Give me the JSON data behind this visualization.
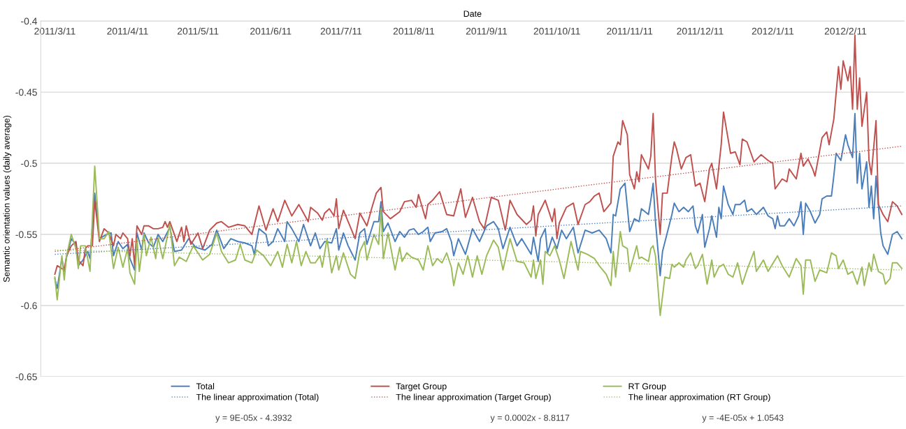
{
  "chart_data": {
    "type": "line",
    "xlabel": "Date",
    "ylabel": "Semantic orientation values (daily average)",
    "xlim": [
      "2011-03-05",
      "2012-03-07"
    ],
    "xticks": [
      {
        "value": "2011-03-11",
        "label": "2011/3/11"
      },
      {
        "value": "2011-04-11",
        "label": "2011/4/11"
      },
      {
        "value": "2011-05-11",
        "label": "2011/5/11"
      },
      {
        "value": "2011-06-11",
        "label": "2011/6/11"
      },
      {
        "value": "2011-07-11",
        "label": "2011/7/11"
      },
      {
        "value": "2011-08-11",
        "label": "2011/8/11"
      },
      {
        "value": "2011-09-11",
        "label": "2011/9/11"
      },
      {
        "value": "2011-10-11",
        "label": "2011/10/11"
      },
      {
        "value": "2011-11-11",
        "label": "2011/11/11"
      },
      {
        "value": "2011-12-11",
        "label": "2011/12/11"
      },
      {
        "value": "2012-01-11",
        "label": "2012/1/11"
      },
      {
        "value": "2012-02-11",
        "label": "2012/2/11"
      }
    ],
    "ylim": [
      -0.65,
      -0.4
    ],
    "yticks": [
      -0.65,
      -0.6,
      -0.55,
      -0.5,
      -0.45,
      -0.4
    ],
    "grid": "y",
    "legend": "bottom",
    "marker": "none",
    "annotations": [
      "y = 9E-05x - 4.3932",
      "y = 0.0002x - 8.8117",
      "y = -4E-05x + 1.0543"
    ],
    "series": [
      {
        "name": "Total",
        "color": "#4a7ebb",
        "line_style": "solid",
        "x": [
          "2011-03-11",
          "2011-03-12",
          "2011-03-14",
          "2011-03-15",
          "2011-03-16",
          "2011-03-18",
          "2011-03-20",
          "2011-03-21",
          "2011-03-23",
          "2011-03-25",
          "2011-03-26",
          "2011-03-28",
          "2011-03-30",
          "2011-04-02",
          "2011-04-04",
          "2011-04-05",
          "2011-04-07",
          "2011-04-09",
          "2011-04-11",
          "2011-04-12",
          "2011-04-14",
          "2011-04-15",
          "2011-04-17",
          "2011-04-18",
          "2011-04-20",
          "2011-04-22",
          "2011-04-24",
          "2011-04-26",
          "2011-04-29",
          "2011-05-01",
          "2011-05-04",
          "2011-05-07",
          "2011-05-10",
          "2011-05-14",
          "2011-05-17",
          "2011-05-19",
          "2011-05-22",
          "2011-05-25",
          "2011-05-28",
          "2011-05-31",
          "2011-06-03",
          "2011-06-04",
          "2011-06-06",
          "2011-06-09",
          "2011-06-10",
          "2011-06-12",
          "2011-06-14",
          "2011-06-17",
          "2011-06-18",
          "2011-06-20",
          "2011-06-23",
          "2011-06-25",
          "2011-06-28",
          "2011-06-30",
          "2011-07-02",
          "2011-07-04",
          "2011-07-07",
          "2011-07-09",
          "2011-07-10",
          "2011-07-12",
          "2011-07-14",
          "2011-07-17",
          "2011-07-19",
          "2011-07-21",
          "2011-07-22",
          "2011-07-25",
          "2011-07-27",
          "2011-07-28",
          "2011-07-29",
          "2011-07-31",
          "2011-08-03",
          "2011-08-05",
          "2011-08-07",
          "2011-08-09",
          "2011-08-11",
          "2011-08-13",
          "2011-08-15",
          "2011-08-17",
          "2011-08-18",
          "2011-08-20",
          "2011-08-23",
          "2011-08-25",
          "2011-08-27",
          "2011-08-28",
          "2011-08-30",
          "2011-09-02",
          "2011-09-05",
          "2011-09-08",
          "2011-09-11",
          "2011-09-14",
          "2011-09-16",
          "2011-09-18",
          "2011-09-21",
          "2011-09-24",
          "2011-09-26",
          "2011-09-30",
          "2011-10-01",
          "2011-10-03",
          "2011-10-04",
          "2011-10-06",
          "2011-10-07",
          "2011-10-09",
          "2011-10-11",
          "2011-10-13",
          "2011-10-15",
          "2011-10-18",
          "2011-10-20",
          "2011-10-23",
          "2011-10-26",
          "2011-10-29",
          "2011-11-01",
          "2011-11-03",
          "2011-11-04",
          "2011-11-05",
          "2011-11-07",
          "2011-11-09",
          "2011-11-11",
          "2011-11-13",
          "2011-11-15",
          "2011-11-16",
          "2011-11-19",
          "2011-11-20",
          "2011-11-21",
          "2011-11-22",
          "2011-11-24",
          "2011-11-25",
          "2011-11-27",
          "2011-11-29",
          "2011-11-30",
          "2011-12-02",
          "2011-12-04",
          "2011-12-06",
          "2011-12-08",
          "2011-12-09",
          "2011-12-10",
          "2011-12-12",
          "2011-12-13",
          "2011-12-15",
          "2011-12-16",
          "2011-12-18",
          "2011-12-19",
          "2011-12-20",
          "2011-12-21",
          "2011-12-23",
          "2011-12-25",
          "2011-12-26",
          "2011-12-28",
          "2011-12-30",
          "2011-12-31",
          "2012-01-02",
          "2012-01-04",
          "2012-01-07",
          "2012-01-09",
          "2012-01-11",
          "2012-01-12",
          "2012-01-13",
          "2012-01-14",
          "2012-01-16",
          "2012-01-18",
          "2012-01-20",
          "2012-01-22",
          "2012-01-23",
          "2012-01-24",
          "2012-01-25",
          "2012-01-27",
          "2012-01-29",
          "2012-01-31",
          "2012-02-01",
          "2012-02-03",
          "2012-02-05",
          "2012-02-06",
          "2012-02-07",
          "2012-02-09",
          "2012-02-11",
          "2012-02-12",
          "2012-02-14",
          "2012-02-15",
          "2012-02-16",
          "2012-02-17",
          "2012-02-18",
          "2012-02-20",
          "2012-02-21",
          "2012-02-22",
          "2012-02-23",
          "2012-02-24",
          "2012-02-26",
          "2012-02-27",
          "2012-02-29",
          "2012-03-02",
          "2012-03-04",
          "2012-03-06"
        ],
        "values": [
          -0.581,
          -0.588,
          -0.567,
          -0.576,
          -0.566,
          -0.553,
          -0.557,
          -0.572,
          -0.568,
          -0.562,
          -0.567,
          -0.521,
          -0.553,
          -0.55,
          -0.549,
          -0.565,
          -0.555,
          -0.56,
          -0.557,
          -0.567,
          -0.575,
          -0.549,
          -0.561,
          -0.549,
          -0.556,
          -0.559,
          -0.55,
          -0.555,
          -0.545,
          -0.562,
          -0.561,
          -0.553,
          -0.559,
          -0.561,
          -0.557,
          -0.547,
          -0.56,
          -0.553,
          -0.555,
          -0.556,
          -0.558,
          -0.564,
          -0.546,
          -0.55,
          -0.558,
          -0.555,
          -0.546,
          -0.555,
          -0.541,
          -0.546,
          -0.555,
          -0.543,
          -0.558,
          -0.549,
          -0.56,
          -0.555,
          -0.556,
          -0.546,
          -0.561,
          -0.549,
          -0.558,
          -0.568,
          -0.549,
          -0.546,
          -0.557,
          -0.541,
          -0.541,
          -0.527,
          -0.548,
          -0.542,
          -0.555,
          -0.548,
          -0.552,
          -0.547,
          -0.546,
          -0.55,
          -0.548,
          -0.545,
          -0.555,
          -0.549,
          -0.548,
          -0.546,
          -0.555,
          -0.565,
          -0.553,
          -0.564,
          -0.546,
          -0.555,
          -0.544,
          -0.541,
          -0.546,
          -0.56,
          -0.545,
          -0.558,
          -0.553,
          -0.564,
          -0.552,
          -0.569,
          -0.553,
          -0.546,
          -0.563,
          -0.552,
          -0.56,
          -0.547,
          -0.553,
          -0.545,
          -0.563,
          -0.547,
          -0.549,
          -0.547,
          -0.553,
          -0.563,
          -0.536,
          -0.537,
          -0.518,
          -0.514,
          -0.548,
          -0.539,
          -0.541,
          -0.532,
          -0.536,
          -0.526,
          -0.514,
          -0.541,
          -0.579,
          -0.562,
          -0.549,
          -0.536,
          -0.528,
          -0.534,
          -0.531,
          -0.534,
          -0.53,
          -0.544,
          -0.549,
          -0.536,
          -0.559,
          -0.546,
          -0.537,
          -0.552,
          -0.531,
          -0.539,
          -0.516,
          -0.529,
          -0.536,
          -0.529,
          -0.529,
          -0.526,
          -0.534,
          -0.532,
          -0.536,
          -0.531,
          -0.537,
          -0.539,
          -0.546,
          -0.537,
          -0.544,
          -0.544,
          -0.539,
          -0.544,
          -0.537,
          -0.527,
          -0.55,
          -0.528,
          -0.534,
          -0.542,
          -0.536,
          -0.525,
          -0.523,
          -0.523,
          -0.509,
          -0.493,
          -0.498,
          -0.48,
          -0.487,
          -0.496,
          -0.465,
          -0.514,
          -0.493,
          -0.518,
          -0.499,
          -0.531,
          -0.516,
          -0.539,
          -0.509,
          -0.549,
          -0.558,
          -0.564,
          -0.55,
          -0.548,
          -0.553
        ]
      },
      {
        "name": "Target Group",
        "color": "#c0504d",
        "line_style": "solid",
        "x": [
          "2011-03-11",
          "2011-03-12",
          "2011-03-15",
          "2011-03-16",
          "2011-03-18",
          "2011-03-20",
          "2011-03-21",
          "2011-03-23",
          "2011-03-24",
          "2011-03-25",
          "2011-03-27",
          "2011-03-28",
          "2011-03-30",
          "2011-04-01",
          "2011-04-03",
          "2011-04-05",
          "2011-04-06",
          "2011-04-08",
          "2011-04-09",
          "2011-04-11",
          "2011-04-12",
          "2011-04-13",
          "2011-04-14",
          "2011-04-15",
          "2011-04-17",
          "2011-04-18",
          "2011-04-20",
          "2011-04-22",
          "2011-04-24",
          "2011-04-26",
          "2011-04-27",
          "2011-04-28",
          "2011-04-29",
          "2011-05-02",
          "2011-05-04",
          "2011-05-05",
          "2011-05-06",
          "2011-05-08",
          "2011-05-11",
          "2011-05-13",
          "2011-05-16",
          "2011-05-19",
          "2011-05-21",
          "2011-05-24",
          "2011-05-28",
          "2011-05-31",
          "2011-06-03",
          "2011-06-06",
          "2011-06-09",
          "2011-06-12",
          "2011-06-14",
          "2011-06-15",
          "2011-06-17",
          "2011-06-20",
          "2011-06-23",
          "2011-06-27",
          "2011-06-28",
          "2011-07-01",
          "2011-07-03",
          "2011-07-04",
          "2011-07-06",
          "2011-07-08",
          "2011-07-09",
          "2011-07-10",
          "2011-07-12",
          "2011-07-14",
          "2011-07-17",
          "2011-07-19",
          "2011-07-22",
          "2011-07-24",
          "2011-07-26",
          "2011-07-28",
          "2011-07-29",
          "2011-08-01",
          "2011-08-05",
          "2011-08-07",
          "2011-08-10",
          "2011-08-12",
          "2011-08-13",
          "2011-08-16",
          "2011-08-17",
          "2011-08-19",
          "2011-08-22",
          "2011-08-25",
          "2011-08-28",
          "2011-08-31",
          "2011-09-02",
          "2011-09-05",
          "2011-09-08",
          "2011-09-10",
          "2011-09-13",
          "2011-09-16",
          "2011-09-19",
          "2011-09-21",
          "2011-09-24",
          "2011-09-28",
          "2011-09-30",
          "2011-10-01",
          "2011-10-02",
          "2011-10-03",
          "2011-10-06",
          "2011-10-09",
          "2011-10-10",
          "2011-10-11",
          "2011-10-12",
          "2011-10-15",
          "2011-10-18",
          "2011-10-20",
          "2011-10-23",
          "2011-10-25",
          "2011-10-27",
          "2011-10-29",
          "2011-10-31",
          "2011-11-03",
          "2011-11-04",
          "2011-11-06",
          "2011-11-07",
          "2011-11-08",
          "2011-11-10",
          "2011-11-11",
          "2011-11-13",
          "2011-11-14",
          "2011-11-15",
          "2011-11-16",
          "2011-11-19",
          "2011-11-20",
          "2011-11-21",
          "2011-11-22",
          "2011-11-24",
          "2011-11-25",
          "2011-11-27",
          "2011-11-29",
          "2011-11-30",
          "2011-12-01",
          "2011-12-03",
          "2011-12-05",
          "2011-12-07",
          "2011-12-09",
          "2011-12-11",
          "2011-12-13",
          "2011-12-15",
          "2011-12-16",
          "2011-12-18",
          "2011-12-20",
          "2011-12-21",
          "2011-12-24",
          "2011-12-26",
          "2011-12-28",
          "2011-12-29",
          "2011-12-31",
          "2012-01-03",
          "2012-01-06",
          "2012-01-09",
          "2012-01-11",
          "2012-01-12",
          "2012-01-15",
          "2012-01-17",
          "2012-01-18",
          "2012-01-21",
          "2012-01-23",
          "2012-01-24",
          "2012-01-26",
          "2012-01-28",
          "2012-01-29",
          "2012-02-01",
          "2012-02-03",
          "2012-02-04",
          "2012-02-06",
          "2012-02-08",
          "2012-02-09",
          "2012-02-10",
          "2012-02-12",
          "2012-02-13",
          "2012-02-14",
          "2012-02-15",
          "2012-02-16",
          "2012-02-17",
          "2012-02-18",
          "2012-02-20",
          "2012-02-21",
          "2012-02-22",
          "2012-02-24",
          "2012-02-25",
          "2012-02-27",
          "2012-02-29",
          "2012-03-02",
          "2012-03-04",
          "2012-03-06"
        ],
        "values": [
          -0.578,
          -0.572,
          -0.575,
          -0.565,
          -0.558,
          -0.555,
          -0.568,
          -0.572,
          -0.56,
          -0.558,
          -0.558,
          -0.526,
          -0.555,
          -0.546,
          -0.549,
          -0.558,
          -0.55,
          -0.553,
          -0.549,
          -0.553,
          -0.565,
          -0.553,
          -0.572,
          -0.544,
          -0.55,
          -0.544,
          -0.544,
          -0.546,
          -0.546,
          -0.545,
          -0.541,
          -0.545,
          -0.541,
          -0.555,
          -0.545,
          -0.555,
          -0.544,
          -0.557,
          -0.549,
          -0.56,
          -0.547,
          -0.542,
          -0.541,
          -0.545,
          -0.543,
          -0.544,
          -0.55,
          -0.53,
          -0.547,
          -0.532,
          -0.541,
          -0.536,
          -0.526,
          -0.537,
          -0.529,
          -0.541,
          -0.531,
          -0.535,
          -0.54,
          -0.535,
          -0.532,
          -0.537,
          -0.525,
          -0.546,
          -0.533,
          -0.541,
          -0.553,
          -0.535,
          -0.544,
          -0.532,
          -0.521,
          -0.517,
          -0.534,
          -0.539,
          -0.534,
          -0.527,
          -0.526,
          -0.531,
          -0.522,
          -0.539,
          -0.529,
          -0.526,
          -0.52,
          -0.536,
          -0.537,
          -0.518,
          -0.538,
          -0.524,
          -0.541,
          -0.546,
          -0.524,
          -0.526,
          -0.547,
          -0.526,
          -0.536,
          -0.543,
          -0.54,
          -0.53,
          -0.551,
          -0.536,
          -0.526,
          -0.541,
          -0.532,
          -0.553,
          -0.542,
          -0.531,
          -0.528,
          -0.543,
          -0.529,
          -0.527,
          -0.523,
          -0.521,
          -0.534,
          -0.528,
          -0.495,
          -0.485,
          -0.487,
          -0.47,
          -0.48,
          -0.508,
          -0.518,
          -0.506,
          -0.513,
          -0.494,
          -0.504,
          -0.495,
          -0.465,
          -0.511,
          -0.55,
          -0.521,
          -0.521,
          -0.495,
          -0.485,
          -0.49,
          -0.504,
          -0.496,
          -0.494,
          -0.516,
          -0.514,
          -0.527,
          -0.504,
          -0.5,
          -0.518,
          -0.487,
          -0.464,
          -0.493,
          -0.492,
          -0.501,
          -0.483,
          -0.485,
          -0.499,
          -0.494,
          -0.498,
          -0.5,
          -0.518,
          -0.511,
          -0.513,
          -0.504,
          -0.511,
          -0.493,
          -0.502,
          -0.497,
          -0.504,
          -0.509,
          -0.482,
          -0.478,
          -0.487,
          -0.469,
          -0.432,
          -0.448,
          -0.428,
          -0.442,
          -0.432,
          -0.462,
          -0.41,
          -0.462,
          -0.44,
          -0.474,
          -0.45,
          -0.498,
          -0.508,
          -0.47,
          -0.529,
          -0.536,
          -0.541,
          -0.527,
          -0.53,
          -0.536
        ]
      },
      {
        "name": "RT Group",
        "color": "#9bbb59",
        "line_style": "solid",
        "x": [
          "2011-03-11",
          "2011-03-12",
          "2011-03-14",
          "2011-03-15",
          "2011-03-16",
          "2011-03-18",
          "2011-03-20",
          "2011-03-21",
          "2011-03-22",
          "2011-03-24",
          "2011-03-26",
          "2011-03-28",
          "2011-03-30",
          "2011-04-01",
          "2011-04-03",
          "2011-04-05",
          "2011-04-07",
          "2011-04-09",
          "2011-04-11",
          "2011-04-12",
          "2011-04-14",
          "2011-04-15",
          "2011-04-16",
          "2011-04-18",
          "2011-04-19",
          "2011-04-21",
          "2011-04-23",
          "2011-04-24",
          "2011-04-26",
          "2011-04-29",
          "2011-05-01",
          "2011-05-03",
          "2011-05-06",
          "2011-05-09",
          "2011-05-13",
          "2011-05-16",
          "2011-05-19",
          "2011-05-21",
          "2011-05-24",
          "2011-05-27",
          "2011-05-29",
          "2011-05-31",
          "2011-06-03",
          "2011-06-05",
          "2011-06-08",
          "2011-06-11",
          "2011-06-14",
          "2011-06-16",
          "2011-06-18",
          "2011-06-20",
          "2011-06-22",
          "2011-06-24",
          "2011-06-26",
          "2011-06-28",
          "2011-06-30",
          "2011-07-02",
          "2011-07-03",
          "2011-07-05",
          "2011-07-07",
          "2011-07-09",
          "2011-07-10",
          "2011-07-12",
          "2011-07-15",
          "2011-07-17",
          "2011-07-19",
          "2011-07-21",
          "2011-07-22",
          "2011-07-25",
          "2011-07-27",
          "2011-07-28",
          "2011-07-29",
          "2011-07-31",
          "2011-08-03",
          "2011-08-05",
          "2011-08-06",
          "2011-08-08",
          "2011-08-10",
          "2011-08-13",
          "2011-08-15",
          "2011-08-17",
          "2011-08-19",
          "2011-08-21",
          "2011-08-23",
          "2011-08-25",
          "2011-08-27",
          "2011-08-28",
          "2011-08-30",
          "2011-09-01",
          "2011-09-03",
          "2011-09-05",
          "2011-09-07",
          "2011-09-09",
          "2011-09-11",
          "2011-09-14",
          "2011-09-16",
          "2011-09-18",
          "2011-09-21",
          "2011-09-24",
          "2011-09-27",
          "2011-09-30",
          "2011-10-01",
          "2011-10-02",
          "2011-10-04",
          "2011-10-05",
          "2011-10-06",
          "2011-10-08",
          "2011-10-10",
          "2011-10-12",
          "2011-10-14",
          "2011-10-17",
          "2011-10-20",
          "2011-10-21",
          "2011-10-24",
          "2011-10-27",
          "2011-10-29",
          "2011-11-01",
          "2011-11-03",
          "2011-11-04",
          "2011-11-05",
          "2011-11-07",
          "2011-11-08",
          "2011-11-10",
          "2011-11-11",
          "2011-11-14",
          "2011-11-15",
          "2011-11-16",
          "2011-11-19",
          "2011-11-20",
          "2011-11-21",
          "2011-11-22",
          "2011-11-24",
          "2011-11-26",
          "2011-11-28",
          "2011-11-29",
          "2011-11-30",
          "2011-12-02",
          "2011-12-04",
          "2011-12-05",
          "2011-12-07",
          "2011-12-09",
          "2011-12-10",
          "2011-12-12",
          "2011-12-14",
          "2011-12-16",
          "2011-12-17",
          "2011-12-19",
          "2011-12-21",
          "2011-12-23",
          "2011-12-25",
          "2011-12-27",
          "2011-12-29",
          "2011-12-31",
          "2012-01-03",
          "2012-01-04",
          "2012-01-07",
          "2012-01-09",
          "2012-01-13",
          "2012-01-15",
          "2012-01-18",
          "2012-01-21",
          "2012-01-23",
          "2012-01-24",
          "2012-01-25",
          "2012-01-27",
          "2012-01-29",
          "2012-01-31",
          "2012-02-03",
          "2012-02-05",
          "2012-02-07",
          "2012-02-08",
          "2012-02-10",
          "2012-02-12",
          "2012-02-14",
          "2012-02-16",
          "2012-02-18",
          "2012-02-19",
          "2012-02-21",
          "2012-02-22",
          "2012-02-23",
          "2012-02-25",
          "2012-02-27",
          "2012-02-28",
          "2012-03-01",
          "2012-03-02",
          "2012-03-04",
          "2012-03-06"
        ],
        "values": [
          -0.58,
          -0.596,
          -0.565,
          -0.582,
          -0.565,
          -0.55,
          -0.56,
          -0.574,
          -0.558,
          -0.558,
          -0.576,
          -0.502,
          -0.553,
          -0.553,
          -0.548,
          -0.574,
          -0.559,
          -0.573,
          -0.56,
          -0.577,
          -0.585,
          -0.553,
          -0.576,
          -0.55,
          -0.565,
          -0.552,
          -0.567,
          -0.552,
          -0.567,
          -0.543,
          -0.572,
          -0.566,
          -0.569,
          -0.558,
          -0.568,
          -0.564,
          -0.549,
          -0.562,
          -0.57,
          -0.568,
          -0.557,
          -0.568,
          -0.57,
          -0.561,
          -0.565,
          -0.572,
          -0.562,
          -0.573,
          -0.557,
          -0.57,
          -0.555,
          -0.572,
          -0.562,
          -0.57,
          -0.57,
          -0.565,
          -0.573,
          -0.553,
          -0.577,
          -0.565,
          -0.575,
          -0.563,
          -0.578,
          -0.581,
          -0.562,
          -0.555,
          -0.568,
          -0.55,
          -0.557,
          -0.532,
          -0.567,
          -0.549,
          -0.575,
          -0.559,
          -0.569,
          -0.563,
          -0.566,
          -0.568,
          -0.575,
          -0.558,
          -0.572,
          -0.567,
          -0.57,
          -0.563,
          -0.573,
          -0.586,
          -0.57,
          -0.578,
          -0.565,
          -0.58,
          -0.565,
          -0.578,
          -0.565,
          -0.554,
          -0.559,
          -0.575,
          -0.553,
          -0.569,
          -0.57,
          -0.58,
          -0.568,
          -0.581,
          -0.568,
          -0.585,
          -0.562,
          -0.565,
          -0.558,
          -0.568,
          -0.581,
          -0.555,
          -0.575,
          -0.562,
          -0.564,
          -0.567,
          -0.572,
          -0.578,
          -0.586,
          -0.562,
          -0.58,
          -0.548,
          -0.558,
          -0.56,
          -0.576,
          -0.558,
          -0.567,
          -0.566,
          -0.569,
          -0.56,
          -0.558,
          -0.565,
          -0.607,
          -0.58,
          -0.581,
          -0.571,
          -0.573,
          -0.57,
          -0.573,
          -0.568,
          -0.563,
          -0.574,
          -0.572,
          -0.564,
          -0.585,
          -0.568,
          -0.58,
          -0.573,
          -0.571,
          -0.578,
          -0.58,
          -0.57,
          -0.585,
          -0.575,
          -0.562,
          -0.576,
          -0.568,
          -0.576,
          -0.565,
          -0.572,
          -0.58,
          -0.567,
          -0.572,
          -0.592,
          -0.568,
          -0.568,
          -0.583,
          -0.575,
          -0.577,
          -0.563,
          -0.565,
          -0.574,
          -0.568,
          -0.578,
          -0.576,
          -0.585,
          -0.573,
          -0.586,
          -0.57,
          -0.576,
          -0.564,
          -0.576,
          -0.578,
          -0.585,
          -0.581,
          -0.57,
          -0.57,
          -0.574
        ]
      },
      {
        "name": "The linear approximation (Total)",
        "color": "#4a7ebb",
        "line_style": "dotted",
        "x": [
          "2011-03-11",
          "2012-03-06"
        ],
        "values": [
          -0.564,
          -0.53
        ]
      },
      {
        "name": "The linear approximation (Target Group)",
        "color": "#c0504d",
        "line_style": "dotted",
        "x": [
          "2011-03-11",
          "2012-03-06"
        ],
        "values": [
          -0.562,
          -0.488
        ]
      },
      {
        "name": "The linear approximation (RT Group)",
        "color": "#9bbb59",
        "line_style": "dotted",
        "x": [
          "2011-03-11",
          "2012-03-06"
        ],
        "values": [
          -0.561,
          -0.575
        ]
      }
    ]
  }
}
